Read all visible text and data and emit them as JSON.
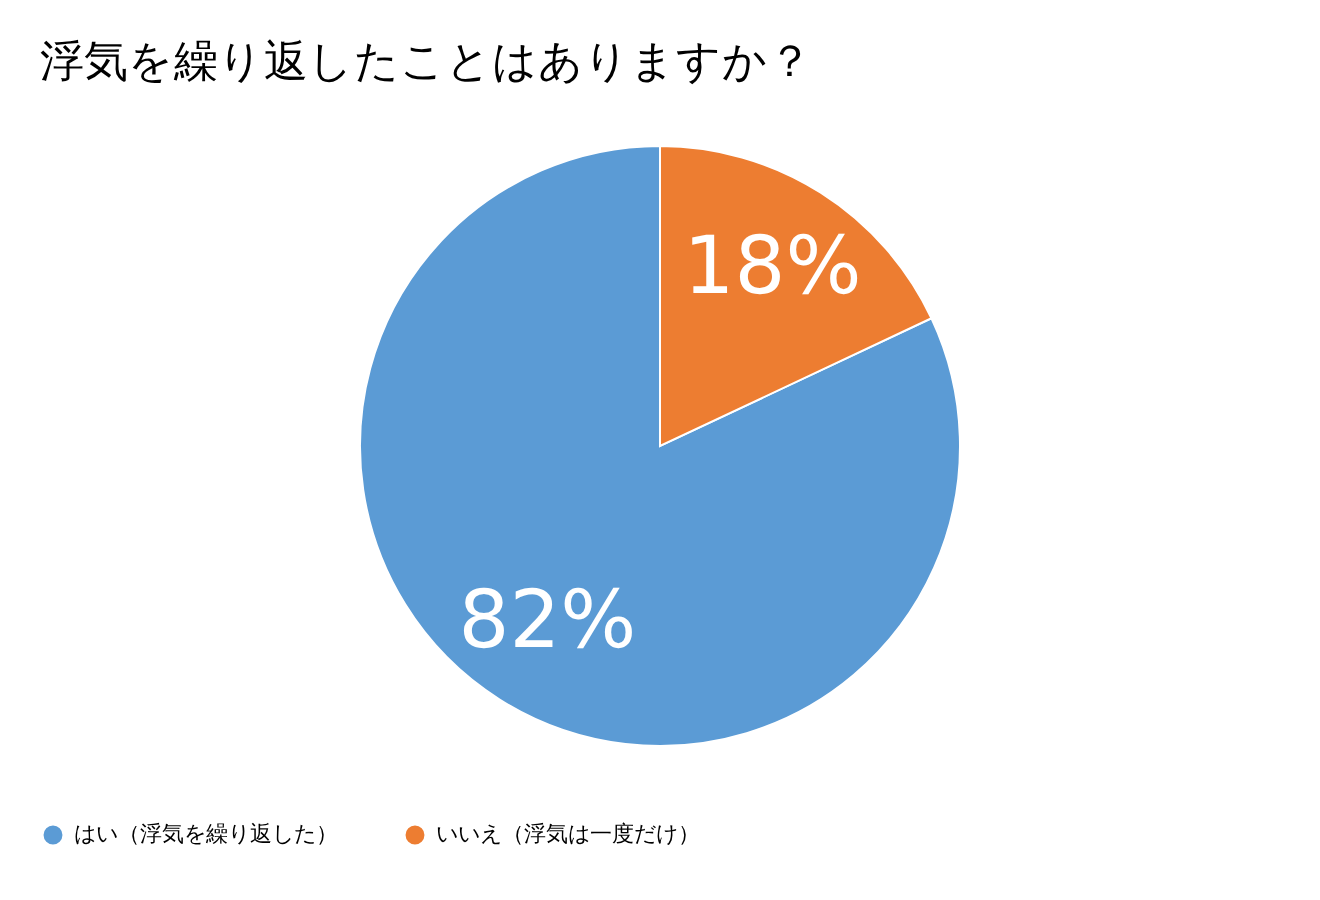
{
  "chart_data": {
    "type": "pie",
    "title": "浮気を繰り返したことはありますか？",
    "categories": [
      "はい（浮気を繰り返した）",
      "いいえ（浮気は一度だけ）"
    ],
    "values": [
      82,
      18
    ],
    "colors": [
      "#5b9bd5",
      "#ed7d31"
    ],
    "value_labels": [
      "82%",
      "18%"
    ],
    "legend": "bottom"
  }
}
